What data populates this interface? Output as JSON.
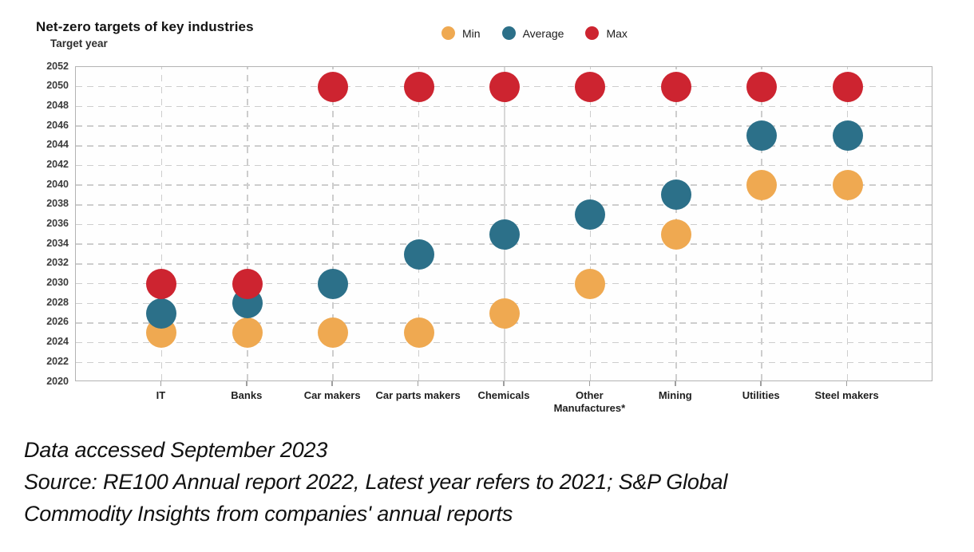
{
  "title": "Net-zero targets of key industries",
  "y_axis_title": "Target year",
  "legend": {
    "position": "top-center",
    "items": [
      {
        "label": "Min",
        "color": "#EFA951"
      },
      {
        "label": "Average",
        "color": "#2C7089"
      },
      {
        "label": "Max",
        "color": "#CD2430"
      }
    ]
  },
  "footer": {
    "lines": [
      "Data accessed September 2023",
      "Source: RE100 Annual report 2022, Latest year refers to 2021; S&P Global",
      "Commodity Insights from companies' annual reports"
    ]
  },
  "chart_data": {
    "type": "scatter",
    "title": "Net-zero targets of key industries",
    "ylabel": "Target year",
    "xlabel": "",
    "categories": [
      "IT",
      "Banks",
      "Car makers",
      "Car parts makers",
      "Chemicals",
      "Other\nManufactures*",
      "Mining",
      "Utilities",
      "Steel makers"
    ],
    "series": [
      {
        "name": "Min",
        "color": "#EFA951",
        "values": [
          2025,
          2025,
          2025,
          2025,
          2027,
          2030,
          2035,
          2040,
          2040
        ]
      },
      {
        "name": "Average",
        "color": "#2C7089",
        "values": [
          2027,
          2028,
          2030,
          2033,
          2035,
          2037,
          2039,
          2045,
          2045
        ]
      },
      {
        "name": "Max",
        "color": "#CD2430",
        "values": [
          2030,
          2030,
          2050,
          2050,
          2050,
          2050,
          2050,
          2050,
          2050
        ]
      }
    ],
    "ylim": [
      2020,
      2052
    ],
    "ytick_step": 2,
    "grid": "dashed",
    "vertical_solid_index": 4,
    "legend_position": "top-center"
  }
}
